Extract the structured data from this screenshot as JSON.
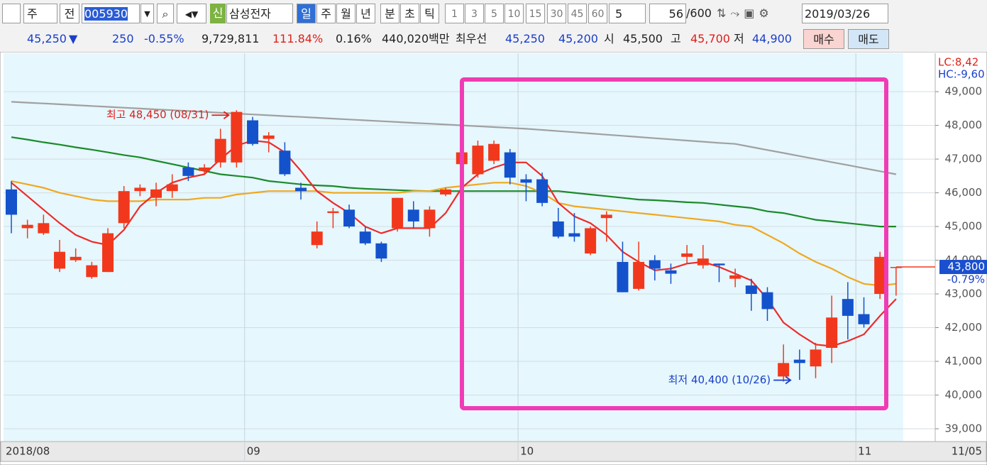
{
  "toolbar": {
    "market": "주",
    "scope": "전",
    "code": "005930",
    "credit": "신",
    "name": "삼성전자",
    "periods": [
      "일",
      "주",
      "월",
      "년",
      "분",
      "초",
      "틱"
    ],
    "intervals": [
      "1",
      "3",
      "5",
      "10",
      "15",
      "30",
      "45",
      "60"
    ],
    "interval_select": "5",
    "count": "56",
    "count_max": "/600",
    "date": "2019/03/26"
  },
  "quote_bar": {
    "price": "45,250",
    "direction": "▼",
    "change": "250",
    "change_rate": "-0.55%",
    "volume": "9,729,811",
    "volume_ratio": "111.84%",
    "turnover": "0.16%",
    "amount": "440,020백만",
    "best_label": "최우선",
    "best_ask": "45,250",
    "best_bid": "45,200",
    "open_label": "시",
    "open": "45,500",
    "high_label": "고",
    "high": "45,700",
    "low_label": "저",
    "low": "44,900",
    "buy": "매수",
    "sell": "매도"
  },
  "chart_data": {
    "type": "candlestick",
    "categories": [
      "2018/08",
      null,
      null,
      null,
      null,
      null,
      null,
      null,
      null,
      null,
      null,
      null,
      null,
      null,
      null,
      "09",
      null,
      null,
      null,
      null,
      null,
      null,
      null,
      null,
      null,
      null,
      null,
      null,
      null,
      null,
      null,
      null,
      "10",
      null,
      null,
      null,
      null,
      null,
      null,
      null,
      null,
      null,
      null,
      null,
      null,
      null,
      null,
      null,
      null,
      null,
      null,
      null,
      null,
      "11",
      null,
      null
    ],
    "x_end_label": "11/05",
    "open": [
      46100,
      44950,
      44800,
      43750,
      44000,
      43500,
      43650,
      45100,
      46050,
      45850,
      46050,
      46750,
      46650,
      46900,
      46900,
      48150,
      47600,
      47250,
      46150,
      44450,
      45400,
      45500,
      44850,
      44500,
      44950,
      45500,
      44950,
      45950,
      46850,
      46550,
      46950,
      47200,
      46400,
      46400,
      45150,
      44800,
      44200,
      45250,
      43950,
      43150,
      44000,
      43700,
      44100,
      43850,
      43900,
      43450,
      43250,
      43050,
      40550,
      41050,
      40850,
      41400,
      42850,
      42400,
      43000,
      43800
    ],
    "high": [
      46350,
      45200,
      45350,
      44600,
      44350,
      43950,
      44950,
      46200,
      46250,
      46300,
      46550,
      46900,
      46850,
      47900,
      48450,
      48250,
      47800,
      47500,
      46300,
      45150,
      45550,
      45650,
      45000,
      44550,
      45850,
      45750,
      45600,
      46150,
      47350,
      47550,
      47550,
      47300,
      46550,
      46600,
      45550,
      45400,
      45000,
      45450,
      44550,
      44550,
      44150,
      43900,
      44450,
      44450,
      43900,
      43750,
      43450,
      43200,
      41500,
      41350,
      41550,
      42950,
      43350,
      42900,
      44250,
      43800
    ],
    "low": [
      44800,
      44650,
      44750,
      43650,
      43950,
      43450,
      43650,
      44950,
      45900,
      45600,
      45850,
      46350,
      46550,
      46750,
      46750,
      47400,
      47200,
      46500,
      45800,
      44350,
      44950,
      44950,
      44450,
      43950,
      44850,
      44950,
      44700,
      45900,
      46750,
      46450,
      46850,
      46250,
      45750,
      45600,
      44650,
      44550,
      44150,
      44550,
      43050,
      43100,
      43400,
      43300,
      43900,
      43750,
      43350,
      43200,
      42500,
      42200,
      40400,
      40450,
      40500,
      40950,
      41650,
      42000,
      42850,
      42950
    ],
    "close": [
      45350,
      45050,
      45100,
      44250,
      44100,
      43850,
      44800,
      46050,
      46150,
      46100,
      46250,
      46500,
      46750,
      47600,
      48400,
      47450,
      47700,
      46550,
      46050,
      44850,
      45450,
      45000,
      44500,
      44050,
      45850,
      45150,
      45500,
      46100,
      47200,
      47400,
      47450,
      46450,
      46300,
      45700,
      44700,
      44700,
      44950,
      45350,
      43050,
      43950,
      43750,
      43600,
      44200,
      44050,
      43850,
      43550,
      43000,
      42550,
      40950,
      40950,
      41350,
      42300,
      42350,
      42100,
      44100,
      43800
    ],
    "up_color": "#f2381c",
    "down_color": "#1452cc",
    "moving_averages": [
      {
        "color": "#a0a0a0",
        "values": [
          48700,
          48675,
          48650,
          48625,
          48600,
          48575,
          48550,
          48525,
          48500,
          48475,
          48450,
          48425,
          48400,
          48375,
          48350,
          48325,
          48300,
          48275,
          48250,
          48225,
          48200,
          48175,
          48150,
          48125,
          48100,
          48075,
          48050,
          48025,
          48000,
          47975,
          47950,
          47925,
          47900,
          47865,
          47830,
          47795,
          47760,
          47725,
          47690,
          47655,
          47620,
          47585,
          47550,
          47515,
          47480,
          47450,
          47360,
          47270,
          47180,
          47090,
          47000,
          46910,
          46820,
          46730,
          46640,
          46550
        ]
      },
      {
        "color": "#1a8a2a",
        "values": [
          47650,
          47580,
          47500,
          47430,
          47350,
          47280,
          47200,
          47120,
          47050,
          46950,
          46850,
          46750,
          46650,
          46550,
          46500,
          46450,
          46350,
          46300,
          46250,
          46220,
          46200,
          46150,
          46120,
          46100,
          46080,
          46060,
          46050,
          46050,
          46050,
          46050,
          46050,
          46050,
          46050,
          46050,
          46050,
          46000,
          45950,
          45900,
          45850,
          45800,
          45780,
          45750,
          45720,
          45700,
          45650,
          45600,
          45550,
          45450,
          45400,
          45300,
          45200,
          45150,
          45100,
          45050,
          45000,
          45000
        ]
      },
      {
        "color": "#f0a820",
        "values": [
          46350,
          46250,
          46150,
          46000,
          45900,
          45800,
          45750,
          45750,
          45750,
          45800,
          45800,
          45800,
          45850,
          45850,
          45950,
          46000,
          46050,
          46050,
          46050,
          46050,
          46000,
          46000,
          46000,
          46000,
          46000,
          46050,
          46050,
          46150,
          46200,
          46250,
          46300,
          46300,
          46200,
          46000,
          45700,
          45600,
          45550,
          45500,
          45450,
          45400,
          45350,
          45300,
          45250,
          45200,
          45150,
          45050,
          45000,
          44750,
          44500,
          44200,
          43950,
          43750,
          43500,
          43300,
          43250,
          43300
        ]
      },
      {
        "color": "#ee2a2a",
        "values": [
          46300,
          45900,
          45500,
          45100,
          44750,
          44550,
          44450,
          44900,
          45600,
          46000,
          46300,
          46450,
          46550,
          47000,
          47400,
          47550,
          47500,
          47200,
          46650,
          46050,
          45700,
          45400,
          45000,
          44800,
          44950,
          44950,
          44950,
          45400,
          46150,
          46550,
          46750,
          46900,
          46900,
          46500,
          45700,
          45300,
          45100,
          44750,
          44250,
          43950,
          43700,
          43750,
          43900,
          43950,
          43800,
          43600,
          43400,
          42850,
          42150,
          41800,
          41500,
          41450,
          41600,
          41800,
          42350,
          42850
        ]
      }
    ],
    "ylim": [
      38620,
      50140
    ],
    "yticks": [
      {
        "value": 39000,
        "label": "39,000"
      },
      {
        "value": 40000,
        "label": "40,000"
      },
      {
        "value": 41000,
        "label": "41,000"
      },
      {
        "value": 42000,
        "label": "42,000"
      },
      {
        "value": 43000,
        "label": "43,000"
      },
      {
        "value": 44000,
        "label": "44,000"
      },
      {
        "value": 45000,
        "label": "45,000"
      },
      {
        "value": 46000,
        "label": "46,000"
      },
      {
        "value": 47000,
        "label": "47,000"
      },
      {
        "value": 48000,
        "label": "48,000"
      },
      {
        "value": 49000,
        "label": "49,000"
      }
    ],
    "grid": true,
    "high_note": {
      "index": 14,
      "label": "최고 48,450 (08/31)"
    },
    "low_note": {
      "index": 48,
      "label": "최저 40,400 (10/26)"
    },
    "price_tag": {
      "value": 43800,
      "label": "43,800"
    },
    "price_change": "-0.79%",
    "limit_labels": [
      "LC:8,42",
      "HC:-9,60"
    ]
  }
}
